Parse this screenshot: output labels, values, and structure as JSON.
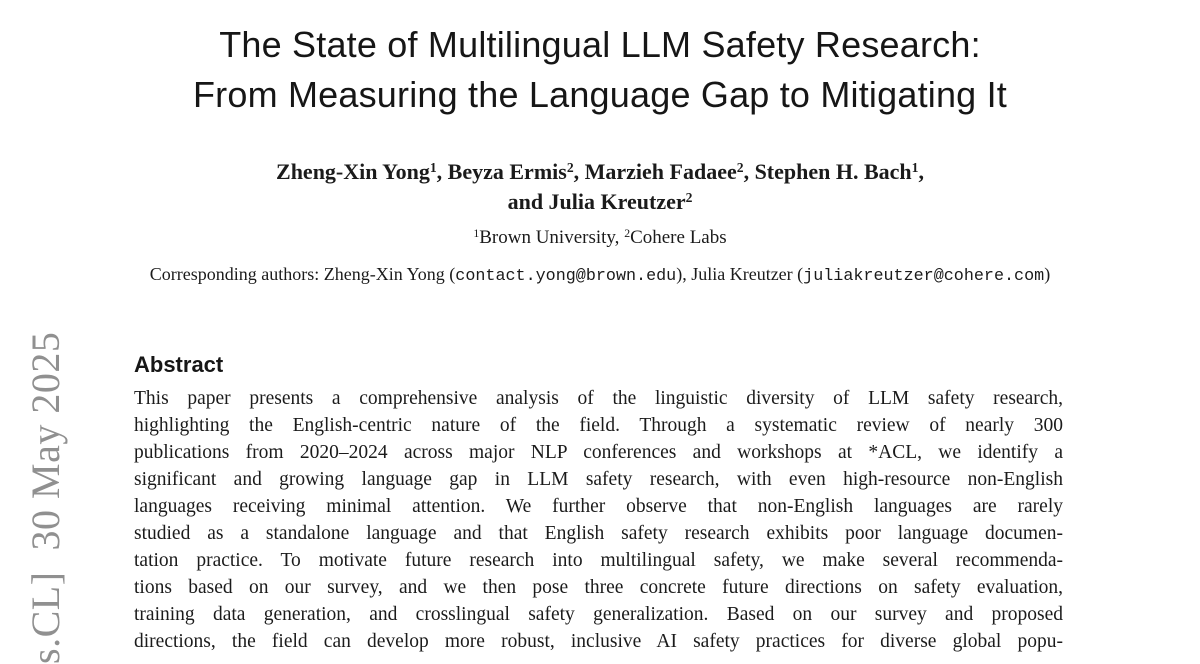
{
  "colors": {
    "text": "#1b1b1b",
    "watermark_gray": "#909090"
  },
  "watermark": {
    "text": "s.CL]  30 May 2025"
  },
  "title": {
    "line1": "The State of Multilingual LLM Safety Research:",
    "line2": "From Measuring the Language Gap to Mitigating It"
  },
  "authors": {
    "line1": [
      {
        "t": "Zheng-Xin Yong"
      },
      {
        "sup": "1"
      },
      {
        "t": ", Beyza Ermis"
      },
      {
        "sup": "2"
      },
      {
        "t": ", Marzieh Fadaee"
      },
      {
        "sup": "2"
      },
      {
        "t": ", Stephen H. Bach"
      },
      {
        "sup": "1"
      },
      {
        "t": ","
      }
    ],
    "line2": [
      {
        "t": "and Julia Kreutzer"
      },
      {
        "sup": "2"
      }
    ]
  },
  "affiliations": {
    "segments": [
      {
        "sup": "1"
      },
      {
        "t": "Brown University, "
      },
      {
        "sup": "2"
      },
      {
        "t": "Cohere Labs"
      }
    ]
  },
  "corresponding": {
    "segments": [
      {
        "t": "Corresponding authors: Zheng-Xin Yong ("
      },
      {
        "mono": "contact.yong@brown.edu"
      },
      {
        "t": "), Julia Kreutzer ("
      },
      {
        "mono": "juliakreutzer@cohere.com"
      },
      {
        "t": ")"
      }
    ]
  },
  "abstract": {
    "heading": "Abstract",
    "lines": [
      "This paper presents a comprehensive analysis of the linguistic diversity of LLM safety research,",
      "highlighting the English-centric nature of the field.  Through a systematic review of nearly 300",
      "publications from 2020–2024 across major NLP conferences and workshops at *ACL, we identify a",
      "significant and growing language gap in LLM safety research, with even high-resource non-English",
      "languages receiving minimal attention.  We further observe that non-English languages are rarely",
      "studied as a standalone language and that English safety research exhibits poor language documen-",
      "tation practice.  To motivate future research into multilingual safety, we make several recommenda-",
      "tions based on our survey, and we then pose three concrete future directions on safety evaluation,",
      "training data generation, and crosslingual safety generalization.  Based on our survey and proposed",
      "directions, the field can develop more robust, inclusive AI safety practices for diverse global popu-"
    ]
  }
}
